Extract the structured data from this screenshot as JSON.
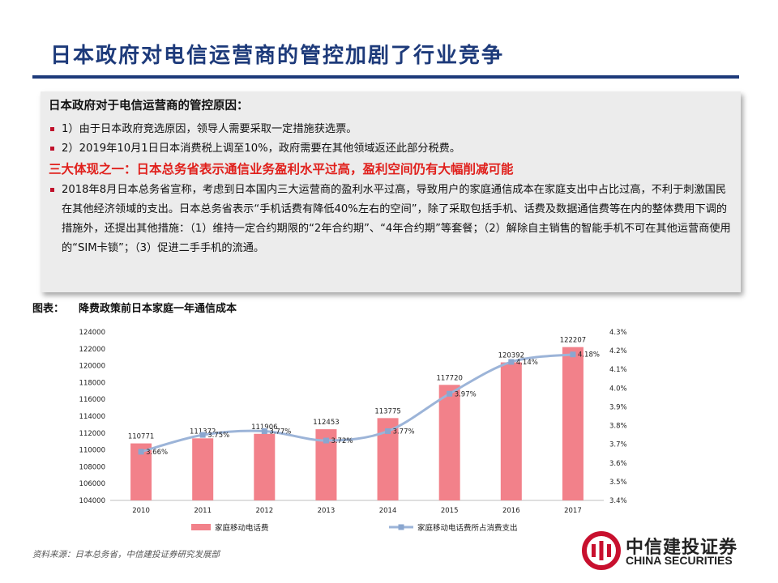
{
  "page_title": "日本政府对电信运营商的管控加剧了行业竞争",
  "panel": {
    "heading": "日本政府对于电信运营商的管控原因：",
    "reasons": [
      "1）由于日本政府竞选原因，领导人需要采取一定措施获选票。",
      "2）2019年10月1日日本消费税上调至10%，政府需要在其他领域返还此部分税费。"
    ],
    "red_heading": "三大体现之一：日本总务省表示通信业务盈利水平过高，盈利空间仍有大幅削减可能",
    "detail": "2018年8月日本总务省宣称，考虑到日本国内三大运营商的盈利水平过高，导致用户的家庭通信成本在家庭支出中占比过高，不利于刺激国民在其他经济领域的支出。日本总务省表示“手机话费有降低40%左右的空间”，除了采取包括手机、话费及数据通信费等在内的整体费用下调的措施外，还提出其他措施：（1）维持一定合约期限的“2年合约期”、“4年合约期”等套餐；（2）解除自主销售的智能手机不可在其他运营商使用的“SIM卡锁”；（3）促进二手手机的流通。"
  },
  "figure": {
    "label": "图表：",
    "caption": "降费政策前日本家庭一年通信成本"
  },
  "source": "资料来源：日本总务省，中信建投证券研究发展部",
  "logo": {
    "cn": "中信建投证券",
    "en": "CHINA SECURITIES"
  },
  "colors": {
    "bar": "#f2818a",
    "line": "#9cb4d8",
    "title": "#1d3a7a",
    "red": "#e0201c"
  },
  "chart_data": {
    "type": "bar",
    "categories": [
      "2010",
      "2011",
      "2012",
      "2013",
      "2014",
      "2015",
      "2016",
      "2017"
    ],
    "series": [
      {
        "name": "家庭移动电话费",
        "type": "bar",
        "axis": "left",
        "values": [
          110771,
          111372,
          111906,
          112453,
          113775,
          117720,
          120392,
          122207
        ],
        "labels": [
          "110771",
          "111372",
          "111906",
          "112453",
          "113775",
          "117720",
          "120392",
          "122207"
        ]
      },
      {
        "name": "家庭移动电话费所占消费支出",
        "type": "line",
        "axis": "right",
        "values": [
          3.66,
          3.75,
          3.77,
          3.72,
          3.77,
          3.97,
          4.14,
          4.18
        ],
        "labels": [
          "3.66%",
          "3.75%",
          "3.77%",
          "3.72%",
          "3.77%",
          "3.97%",
          "4.14%",
          "4.18%"
        ]
      }
    ],
    "y_left": {
      "min": 104000,
      "max": 124000,
      "ticks": [
        "104000",
        "106000",
        "108000",
        "110000",
        "112000",
        "114000",
        "116000",
        "118000",
        "120000",
        "122000",
        "124000"
      ]
    },
    "y_right": {
      "min": 3.4,
      "max": 4.3,
      "ticks": [
        "3.4%",
        "3.5%",
        "3.6%",
        "3.7%",
        "3.8%",
        "3.9%",
        "4.0%",
        "4.1%",
        "4.2%",
        "4.3%"
      ]
    },
    "grid": false,
    "legend_position": "bottom"
  }
}
